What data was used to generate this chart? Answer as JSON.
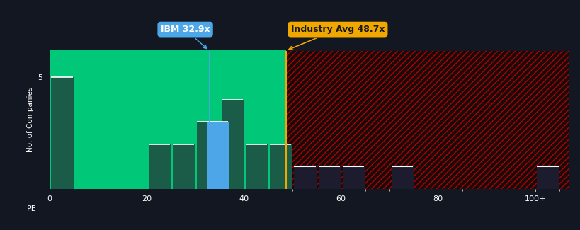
{
  "background_color": "#131722",
  "plot_bg_left": "#00c878",
  "plot_bg_right": "#1a0a0a",
  "bar_color_normal": "#1a5c48",
  "bar_color_ibm": "#4da6e8",
  "hatch_color": "#cc0000",
  "ibm_line_color": "#4da6e8",
  "industry_line_color": "#f0a800",
  "ibm_label": "IBM 32.9x",
  "industry_label": "Industry Avg 48.7x",
  "ibm_label_bg": "#4da6e8",
  "ibm_label_fg": "#ffffff",
  "industry_label_bg": "#f0a800",
  "industry_label_fg": "#1a1a1a",
  "ibm_value": 32.9,
  "industry_value": 48.7,
  "xlabel": "PE",
  "ylabel": "No. of Companies",
  "xticks": [
    0,
    20,
    40,
    60,
    80,
    100
  ],
  "xtick_labels": [
    "0",
    "20",
    "40",
    "60",
    "80",
    "100+"
  ],
  "ylim": [
    0,
    6.2
  ],
  "xlim": [
    0,
    107
  ],
  "left_bars_x": [
    0,
    20,
    25,
    30,
    35,
    35,
    40,
    45
  ],
  "left_bars_h": [
    5,
    2,
    2,
    3,
    4,
    3,
    2,
    2
  ],
  "left_bars_ibm": [
    false,
    false,
    false,
    false,
    false,
    true,
    false,
    false
  ],
  "right_bars_x": [
    50,
    55,
    60,
    70,
    100
  ],
  "right_bars_h": [
    1,
    1,
    1,
    1,
    1
  ],
  "figsize": [
    8.2,
    3.25
  ],
  "dpi": 100
}
